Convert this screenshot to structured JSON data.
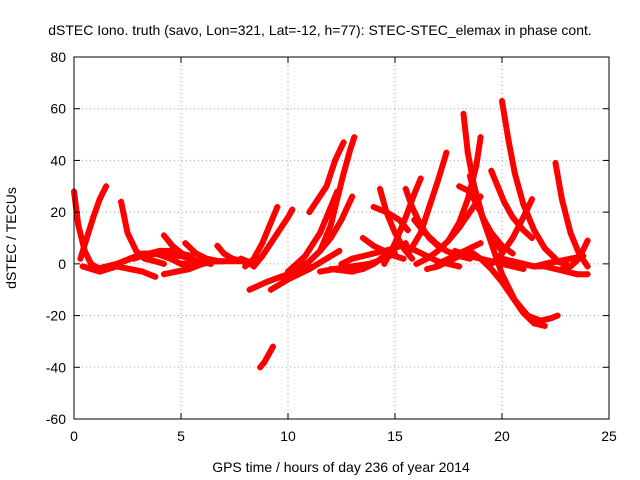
{
  "chart_data": {
    "type": "scatter",
    "title": "dSTEC Iono. truth (savo, Lon=321, Lat=-12, h=77): STEC-STEC_elemax in phase cont.",
    "xlabel": "GPS time / hours of day 236 of year 2014",
    "ylabel": "dSTEC  / TECUs",
    "xlim": [
      0,
      25
    ],
    "ylim": [
      -60,
      80
    ],
    "xticks": [
      0,
      5,
      10,
      15,
      20,
      25
    ],
    "yticks": [
      -60,
      -40,
      -20,
      0,
      20,
      40,
      60,
      80
    ],
    "xtick_labels": [
      "0",
      "5",
      "10",
      "15",
      "20",
      "25"
    ],
    "ytick_labels": [
      "-60",
      "-40",
      "-20",
      "0",
      "20",
      "40",
      "60",
      "80"
    ],
    "grid": true,
    "color": "#ff0000",
    "marker": "+",
    "series": [
      {
        "x": [
          0.0,
          0.2,
          0.5,
          0.8,
          1.2,
          1.6,
          2.0,
          2.6,
          3.2,
          3.8
        ],
        "y": [
          28,
          15,
          5,
          0,
          -2,
          -2,
          -1,
          -2,
          -3,
          -5
        ]
      },
      {
        "x": [
          0.3,
          0.6,
          0.9,
          1.2,
          1.5
        ],
        "y": [
          2,
          10,
          18,
          25,
          30
        ]
      },
      {
        "x": [
          0.4,
          0.8,
          1.2,
          1.6
        ],
        "y": [
          -1,
          -2,
          -3,
          -2
        ]
      },
      {
        "x": [
          2.2,
          2.5,
          2.9,
          3.3,
          3.8,
          4.2
        ],
        "y": [
          24,
          12,
          5,
          2,
          1,
          0
        ]
      },
      {
        "x": [
          2.0,
          2.6,
          3.2,
          3.8,
          4.5,
          5.0,
          5.5
        ],
        "y": [
          0,
          2,
          4,
          4,
          2,
          0,
          -1
        ]
      },
      {
        "x": [
          1.0,
          2.0,
          3.0,
          4.0,
          5.0,
          5.5
        ],
        "y": [
          -2,
          0,
          3,
          4,
          3,
          2
        ]
      },
      {
        "x": [
          2.8,
          3.5,
          4.0,
          4.5,
          5.0,
          5.5
        ],
        "y": [
          2,
          4,
          5,
          5,
          4,
          3
        ]
      },
      {
        "x": [
          4.2,
          4.8,
          5.4,
          6.0,
          6.5,
          7.0
        ],
        "y": [
          -4,
          -3,
          -2,
          0,
          1,
          1
        ]
      },
      {
        "x": [
          4.2,
          4.6,
          5.2,
          5.8,
          6.4
        ],
        "y": [
          11,
          7,
          3,
          1,
          0
        ]
      },
      {
        "x": [
          5.2,
          5.7,
          6.2,
          6.8
        ],
        "y": [
          8,
          4,
          2,
          1
        ]
      },
      {
        "x": [
          6.7,
          7.0,
          7.4,
          7.9
        ],
        "y": [
          7,
          4,
          2,
          1
        ]
      },
      {
        "x": [
          5.0,
          6.0,
          7.0,
          8.0,
          8.3
        ],
        "y": [
          0,
          1,
          1,
          1,
          0
        ]
      },
      {
        "x": [
          7.8,
          8.1,
          8.4
        ],
        "y": [
          2,
          1,
          -1
        ]
      },
      {
        "x": [
          8.0,
          8.4,
          8.8,
          9.2,
          9.5
        ],
        "y": [
          -1,
          2,
          8,
          16,
          22
        ]
      },
      {
        "x": [
          8.4,
          8.8,
          9.2,
          9.6,
          10.0,
          10.2
        ],
        "y": [
          -1,
          3,
          8,
          13,
          18,
          21
        ]
      },
      {
        "x": [
          8.7,
          8.9,
          9.1,
          9.3
        ],
        "y": [
          -40,
          -38,
          -35,
          -32
        ]
      },
      {
        "x": [
          8.2,
          9.0,
          10.0,
          11.0
        ],
        "y": [
          -10,
          -7,
          -4,
          -1
        ]
      },
      {
        "x": [
          9.2,
          10.0,
          11.0,
          11.8,
          12.4
        ],
        "y": [
          -10,
          -6,
          -2,
          2,
          5
        ]
      },
      {
        "x": [
          10.0,
          11.0,
          11.5,
          12.0,
          12.5,
          13.0
        ],
        "y": [
          -4,
          1,
          5,
          10,
          17,
          26
        ]
      },
      {
        "x": [
          11.5,
          12.0,
          12.3,
          12.6,
          12.9,
          13.1
        ],
        "y": [
          5,
          15,
          25,
          35,
          44,
          49
        ]
      },
      {
        "x": [
          10.0,
          10.8,
          11.5,
          12.0,
          12.3
        ],
        "y": [
          -3,
          3,
          12,
          22,
          28
        ]
      },
      {
        "x": [
          11.0,
          11.8,
          12.2,
          12.6
        ],
        "y": [
          20,
          30,
          40,
          47
        ]
      },
      {
        "x": [
          11.5,
          12.2,
          13.0,
          13.8,
          14.5,
          15.0
        ],
        "y": [
          -3,
          -2,
          -1,
          0,
          2,
          4
        ]
      },
      {
        "x": [
          12.5,
          13.0,
          14.0,
          15.0,
          15.5
        ],
        "y": [
          0,
          2,
          4,
          6,
          8
        ]
      },
      {
        "x": [
          12.0,
          13.0,
          13.5,
          14.0,
          14.5,
          15.0
        ],
        "y": [
          -2,
          -3,
          -2,
          0,
          3,
          6
        ]
      },
      {
        "x": [
          13.5,
          14.0,
          14.5,
          15.0,
          15.4
        ],
        "y": [
          10,
          7,
          5,
          3,
          2
        ]
      },
      {
        "x": [
          14.3,
          14.6,
          15.0,
          15.4,
          15.8
        ],
        "y": [
          29,
          20,
          12,
          6,
          2
        ]
      },
      {
        "x": [
          14.0,
          14.6,
          15.2,
          15.6
        ],
        "y": [
          22,
          20,
          17,
          13
        ]
      },
      {
        "x": [
          14.5,
          15.0,
          15.5,
          15.9,
          16.2
        ],
        "y": [
          0,
          8,
          18,
          27,
          33
        ]
      },
      {
        "x": [
          15.5,
          15.8,
          16.2,
          16.6,
          17.0,
          17.4
        ],
        "y": [
          29,
          22,
          15,
          10,
          7,
          5
        ]
      },
      {
        "x": [
          15.7,
          16.2,
          16.6,
          17.0,
          17.4
        ],
        "y": [
          5,
          12,
          22,
          32,
          43
        ]
      },
      {
        "x": [
          15.5,
          16.0,
          16.5,
          17.0,
          17.5,
          18.0
        ],
        "y": [
          7,
          5,
          3,
          1,
          0,
          -1
        ]
      },
      {
        "x": [
          15.9,
          16.4,
          16.9,
          17.4,
          18.0,
          18.5
        ],
        "y": [
          17,
          12,
          8,
          5,
          3,
          2
        ]
      },
      {
        "x": [
          16.0,
          16.5,
          17.0,
          17.5,
          18.0,
          18.5,
          19.0
        ],
        "y": [
          0,
          2,
          5,
          9,
          14,
          20,
          26
        ]
      },
      {
        "x": [
          16.5,
          17.0,
          17.5,
          18.0,
          18.3
        ],
        "y": [
          -2,
          -1,
          1,
          3,
          5
        ]
      },
      {
        "x": [
          17.0,
          17.5,
          18.0,
          18.5,
          19.0
        ],
        "y": [
          0,
          2,
          4,
          6,
          8
        ]
      },
      {
        "x": [
          17.5,
          18.0,
          18.4,
          18.8,
          19.0
        ],
        "y": [
          9,
          16,
          25,
          38,
          49
        ]
      },
      {
        "x": [
          18.2,
          18.4,
          18.7,
          19.1,
          19.5,
          20.0
        ],
        "y": [
          58,
          43,
          30,
          18,
          10,
          5
        ]
      },
      {
        "x": [
          18.5,
          18.8,
          19.1,
          19.5,
          20.0,
          20.5
        ],
        "y": [
          34,
          25,
          18,
          12,
          7,
          4
        ]
      },
      {
        "x": [
          17.8,
          18.5,
          19.0,
          19.5,
          20.0,
          20.5,
          21.0
        ],
        "y": [
          5,
          3,
          2,
          1,
          0,
          -1,
          -2
        ]
      },
      {
        "x": [
          18.0,
          18.5,
          19.0,
          19.5,
          20.0,
          20.6,
          21.2,
          21.8,
          22.3,
          22.6
        ],
        "y": [
          30,
          28,
          20,
          8,
          -4,
          -14,
          -20,
          -22,
          -21,
          -20
        ]
      },
      {
        "x": [
          18.5,
          19.0,
          19.5,
          20.0,
          20.5,
          21.0,
          21.5,
          22.0
        ],
        "y": [
          5,
          2,
          -2,
          -7,
          -13,
          -19,
          -23,
          -24
        ]
      },
      {
        "x": [
          19.5,
          19.8,
          20.1,
          20.5,
          21.0,
          21.4
        ],
        "y": [
          36,
          30,
          24,
          18,
          13,
          10
        ]
      },
      {
        "x": [
          20.0,
          20.3,
          20.6,
          21.0,
          21.5,
          22.0,
          22.5
        ],
        "y": [
          63,
          48,
          35,
          23,
          13,
          6,
          2
        ]
      },
      {
        "x": [
          19.5,
          20.0,
          20.5,
          21.0,
          21.4
        ],
        "y": [
          0,
          4,
          10,
          18,
          25
        ]
      },
      {
        "x": [
          20.0,
          20.5,
          21.0,
          21.5,
          22.0,
          22.5,
          23.0
        ],
        "y": [
          2,
          1,
          0,
          -1,
          0,
          1,
          0
        ]
      },
      {
        "x": [
          20.5,
          21.0,
          21.5,
          22.0,
          22.5,
          23.0,
          23.5,
          24.0
        ],
        "y": [
          1,
          0,
          -1,
          -1,
          -2,
          -3,
          -4,
          -4
        ]
      },
      {
        "x": [
          22.5,
          22.8,
          23.2,
          23.6,
          24.0
        ],
        "y": [
          39,
          25,
          12,
          4,
          -1
        ]
      },
      {
        "x": [
          22.8,
          23.2,
          23.6,
          24.0
        ],
        "y": [
          -2,
          -1,
          2,
          9
        ]
      },
      {
        "x": [
          22.0,
          22.6,
          23.2,
          23.8
        ],
        "y": [
          0,
          1,
          2,
          3
        ]
      }
    ]
  }
}
